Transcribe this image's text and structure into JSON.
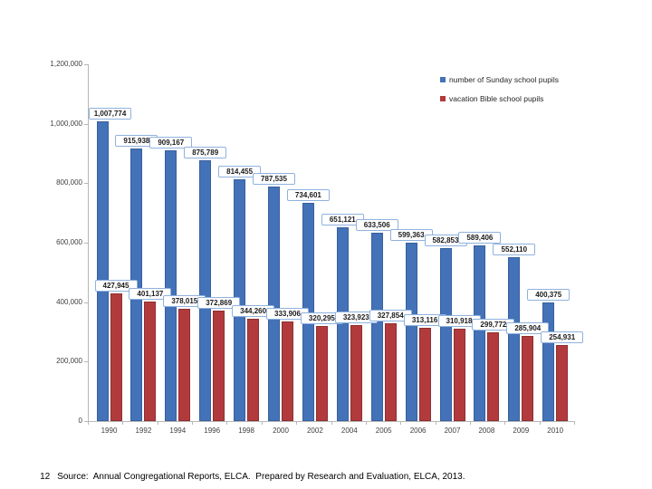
{
  "slide": {
    "footer": {
      "page_number": "12",
      "source_text": "Source:  Annual Congregational Reports, ELCA.  Prepared by Research and Evaluation, ELCA, 2013."
    }
  },
  "colors": {
    "sunday_blue": "#4472b8",
    "vbs_red": "#b23a3d",
    "label_box_border": "#8fb2de",
    "axis_line": "#b7b7b7",
    "tick_text": "#3f3f3f"
  },
  "chart_data": {
    "type": "bar",
    "title": "",
    "xlabel": "",
    "ylabel": "",
    "grid": false,
    "legend_position": "top-right",
    "ylim": [
      0,
      1200000
    ],
    "ytick_step": 200000,
    "yticks": [
      0,
      200000,
      400000,
      600000,
      800000,
      1000000,
      1200000
    ],
    "ytick_labels": [
      "0",
      "200,000",
      "400,000",
      "600,000",
      "800,000",
      "1,000,000",
      "1,200,000"
    ],
    "categories": [
      "1990",
      "1992",
      "1994",
      "1996",
      "1998",
      "2000",
      "2002",
      "2004",
      "2005",
      "2006",
      "2007",
      "2008",
      "2009",
      "2010"
    ],
    "series": [
      {
        "name": "number of Sunday school pupils",
        "color_key": "sunday_blue",
        "values": [
          1007774,
          915938,
          909167,
          875789,
          814455,
          787535,
          734601,
          651121,
          633506,
          599363,
          582853,
          589406,
          552110,
          400375
        ],
        "labels": [
          "1,007,774",
          "915,938",
          "909,167",
          "875,789",
          "814,455",
          "787,535",
          "734,601",
          "651,121",
          "633,506",
          "599,363",
          "582,853",
          "589,406",
          "552,110",
          "400,375"
        ]
      },
      {
        "name": "vacation Bible school pupils",
        "color_key": "vbs_red",
        "values": [
          427945,
          401137,
          378015,
          372869,
          344260,
          333906,
          320295,
          323923,
          327854,
          313116,
          310918,
          299772,
          285904,
          254931
        ],
        "labels": [
          "427,945",
          "401,137",
          "378,015",
          "372,869",
          "344,260",
          "333,906",
          "320,295",
          "323,923",
          "327,854",
          "313,116",
          "310,918",
          "299,772",
          "285,904",
          "254,931"
        ]
      }
    ]
  }
}
